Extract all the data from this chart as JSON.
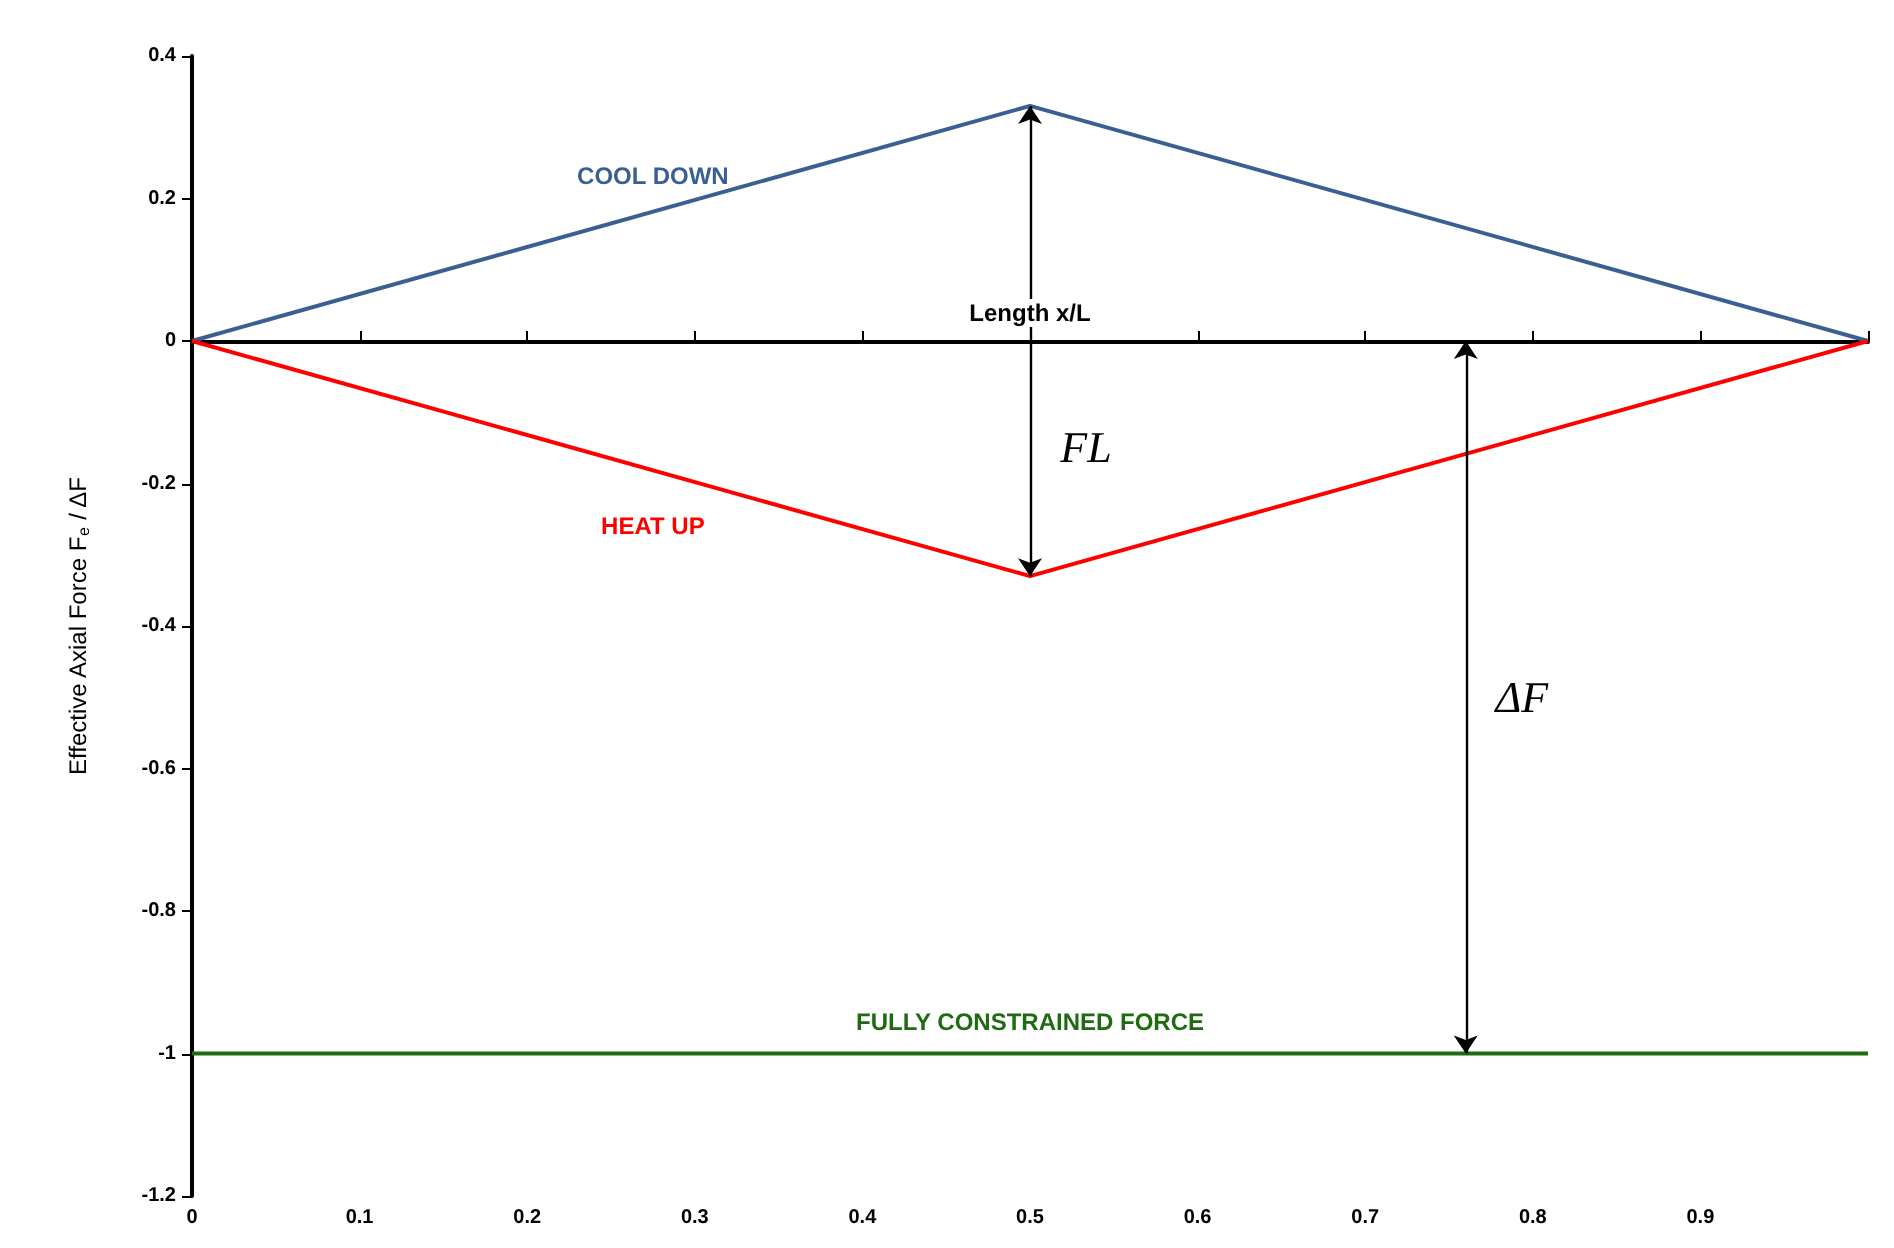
{
  "chart_data": {
    "type": "line",
    "xlabel": "Length x/L",
    "ylabel": "Effective Axial Force F$_{e}$ / ΔF",
    "x": [
      0,
      0.5,
      1
    ],
    "xlim": [
      0,
      1
    ],
    "xticks": [
      0,
      0.1,
      0.2,
      0.3,
      0.4,
      0.5,
      0.6,
      0.7,
      0.8,
      0.9,
      {
        "value": 1,
        "label": null
      }
    ],
    "ylim": [
      -1.2,
      0.4
    ],
    "yticks": [
      -1.2,
      -1,
      -0.8,
      -0.6,
      -0.4,
      -0.2,
      0,
      0.2,
      0.4
    ],
    "series": [
      {
        "name": "COOL DOWN",
        "color": "#3a5f93",
        "values": [
          0,
          0.33,
          0
        ]
      },
      {
        "name": "HEAT UP",
        "color": "#ff0000",
        "values": [
          0,
          -0.33,
          0
        ]
      },
      {
        "name": "FULLY CONSTRAINED FORCE",
        "color": "#1e6b12",
        "values": [
          -1,
          -1,
          -1
        ]
      }
    ],
    "annotations": [
      "FL",
      "ΔF"
    ],
    "marker": "none",
    "line_style": "solid"
  }
}
